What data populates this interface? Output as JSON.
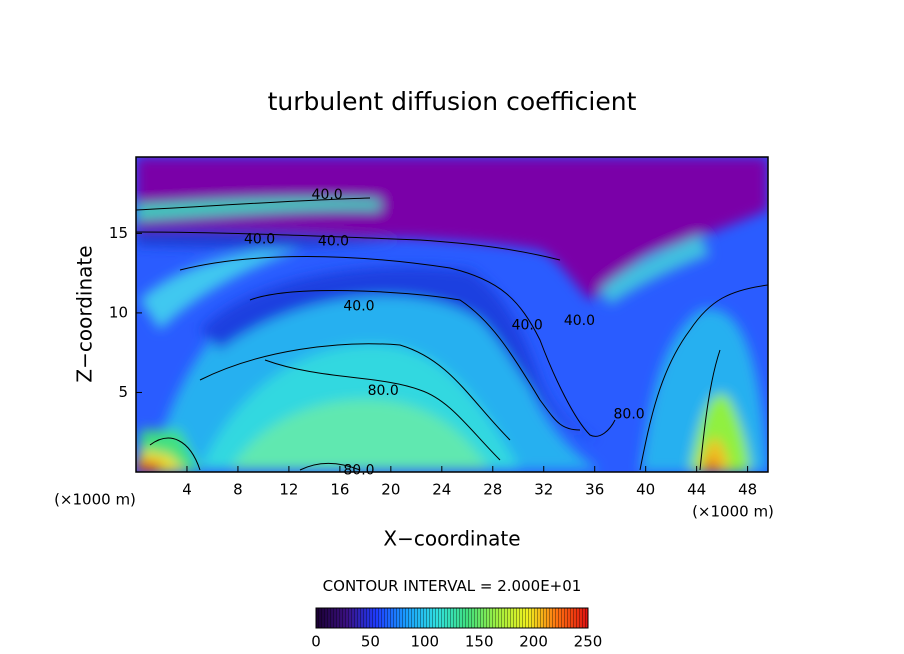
{
  "chart_data": {
    "type": "contour",
    "title": "turbulent diffusion coefficient",
    "xlabel": "X−coordinate",
    "ylabel": "Z−coordinate",
    "x_unit_left": "(×1000 m)",
    "x_unit_right": "(×1000 m)",
    "xlim": [
      0,
      49.6
    ],
    "ylim": [
      0,
      19.8
    ],
    "xticks": [
      4,
      8,
      12,
      16,
      20,
      24,
      28,
      32,
      36,
      40,
      44,
      48
    ],
    "yticks": [
      5,
      10,
      15
    ],
    "contour_labels": {
      "x": [
        15.0,
        9.7,
        15.5,
        17.5,
        19.4,
        17.5,
        30.7,
        34.8,
        38.7
      ],
      "y": [
        17.4,
        14.6,
        14.5,
        10.4,
        5.1,
        0.1,
        9.2,
        9.5,
        3.6
      ],
      "values": [
        40,
        40,
        40,
        40,
        80,
        80,
        40,
        40,
        80
      ],
      "value_labels": [
        "40.0",
        "40.0",
        "40.0",
        "40.0",
        "80.0",
        "80.0",
        "40.0",
        "40.0",
        "80.0"
      ]
    },
    "contour_interval_title": "CONTOUR INTERVAL =",
    "contour_interval": {
      "value": 20,
      "label": "2.000E+01"
    },
    "colorbar": {
      "lim": [
        0,
        250
      ],
      "ticks": [
        0,
        50,
        100,
        150,
        200,
        250
      ],
      "colors": [
        "#1a0033",
        "#3a1080",
        "#1e3cff",
        "#1aa0ff",
        "#30e0e0",
        "#40e080",
        "#a0f040",
        "#f0f020",
        "#ff7010",
        "#e01010"
      ]
    }
  }
}
